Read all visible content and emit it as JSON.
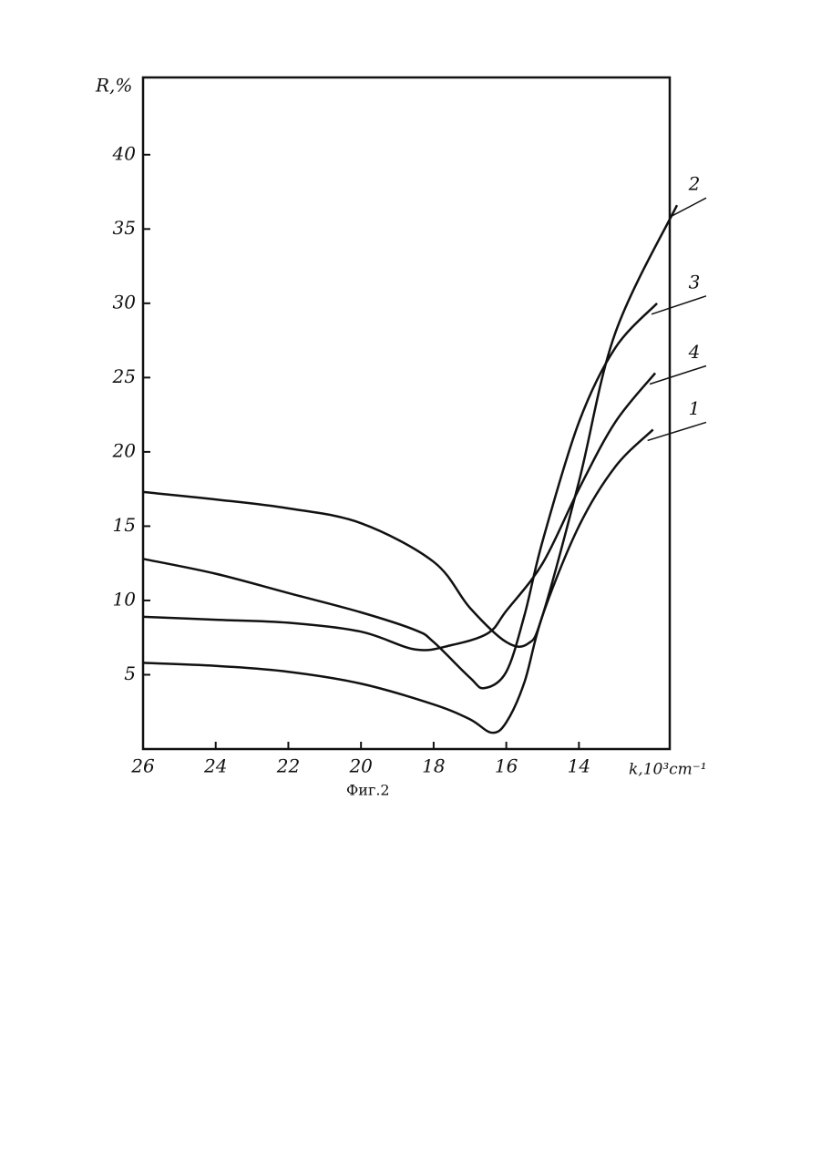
{
  "chart_data": {
    "type": "line",
    "caption": "Фиг.2",
    "y_label": "R,%",
    "x_label": "k,10³cm⁻¹",
    "xlim": [
      26,
      11.5
    ],
    "ylim": [
      0,
      45.2
    ],
    "xticks": [
      26,
      24,
      22,
      20,
      18,
      16,
      14
    ],
    "yticks": [
      5,
      10,
      15,
      20,
      25,
      30,
      35,
      40
    ],
    "color": "#111111",
    "series": [
      {
        "name": "1",
        "x": [
          26,
          24,
          22,
          20,
          18,
          17,
          16.4,
          16,
          15.5,
          15,
          14,
          13,
          11.96
        ],
        "values": [
          5.8,
          5.6,
          5.2,
          4.4,
          3.0,
          2.0,
          1.1,
          1.8,
          4.5,
          9,
          15,
          19,
          21.5
        ]
      },
      {
        "name": "2",
        "x": [
          26,
          24,
          22,
          20,
          18,
          17,
          16,
          15.4,
          15,
          14,
          13,
          11.3
        ],
        "values": [
          17.3,
          16.8,
          16.2,
          15.2,
          12.6,
          9.5,
          7.2,
          7.1,
          9,
          18,
          28,
          36.6
        ]
      },
      {
        "name": "3",
        "x": [
          26,
          24,
          22,
          20,
          18.5,
          18,
          17,
          16.6,
          16,
          15.5,
          15,
          14,
          13,
          11.85
        ],
        "values": [
          12.8,
          11.8,
          10.5,
          9.2,
          8.0,
          7.2,
          4.8,
          4.1,
          5.2,
          9,
          14,
          22,
          27,
          30
        ]
      },
      {
        "name": "4",
        "x": [
          26,
          24,
          22,
          20,
          18.5,
          17.5,
          16.5,
          16,
          15,
          14,
          13,
          11.9
        ],
        "values": [
          8.9,
          8.7,
          8.5,
          7.9,
          6.7,
          7.0,
          7.8,
          9.3,
          12.5,
          17.5,
          22,
          25.3
        ]
      }
    ]
  }
}
